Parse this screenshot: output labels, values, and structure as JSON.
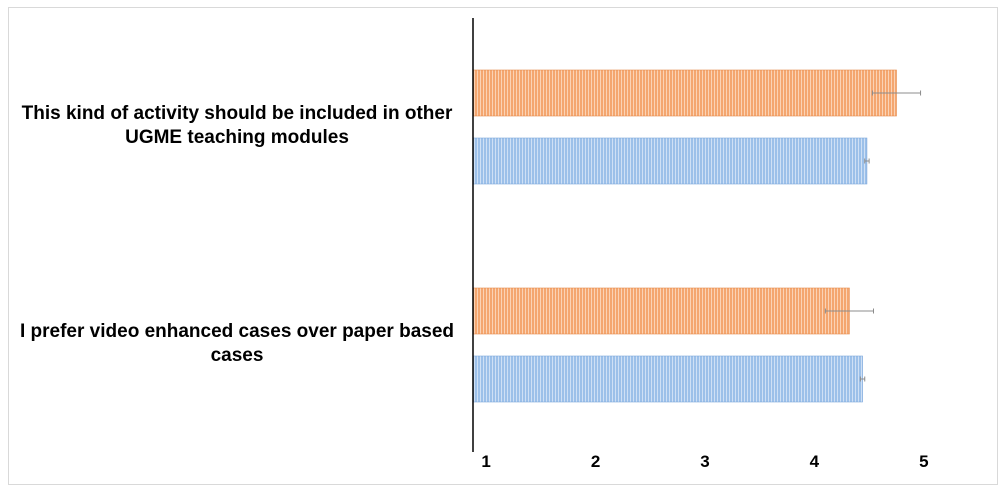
{
  "chart_data": {
    "type": "bar",
    "orientation": "horizontal",
    "categories": [
      "This kind of activity  should be included in other UGME teaching modules",
      "I prefer video enhanced cases over paper based cases"
    ],
    "series": [
      {
        "color": "#f4a66f",
        "values": [
          4.75,
          4.32
        ],
        "errors": [
          0.22,
          0.22
        ]
      },
      {
        "color": "#9cc0e9",
        "values": [
          4.48,
          4.44
        ],
        "errors": [
          0.02,
          0.02
        ]
      }
    ],
    "x_ticks": [
      "1",
      "2",
      "3",
      "4",
      "5"
    ],
    "xlim": [
      0.88,
      5.76
    ],
    "grid": false,
    "legend": "none"
  }
}
